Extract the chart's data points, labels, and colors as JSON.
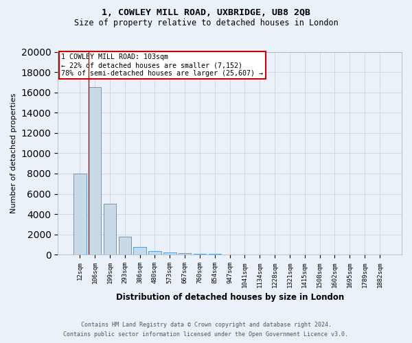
{
  "title1": "1, COWLEY MILL ROAD, UXBRIDGE, UB8 2QB",
  "title2": "Size of property relative to detached houses in London",
  "xlabel": "Distribution of detached houses by size in London",
  "ylabel": "Number of detached properties",
  "footnote1": "Contains HM Land Registry data © Crown copyright and database right 2024.",
  "footnote2": "Contains public sector information licensed under the Open Government Licence v3.0.",
  "bar_labels": [
    "12sqm",
    "106sqm",
    "199sqm",
    "293sqm",
    "386sqm",
    "480sqm",
    "573sqm",
    "667sqm",
    "760sqm",
    "854sqm",
    "947sqm",
    "1041sqm",
    "1134sqm",
    "1228sqm",
    "1321sqm",
    "1415sqm",
    "1508sqm",
    "1602sqm",
    "1695sqm",
    "1789sqm",
    "1882sqm"
  ],
  "bar_values": [
    8000,
    16500,
    5000,
    1750,
    750,
    350,
    200,
    150,
    120,
    100,
    0,
    0,
    0,
    0,
    0,
    0,
    0,
    0,
    0,
    0,
    0
  ],
  "bar_color": "#c8d9e8",
  "bar_edge_color": "#5b9bd5",
  "grid_color": "#d0d8e0",
  "background_color": "#eaf1f8",
  "annotation_text": "1 COWLEY MILL ROAD: 103sqm\n← 22% of detached houses are smaller (7,152)\n78% of semi-detached houses are larger (25,607) →",
  "annotation_box_color": "#ffffff",
  "annotation_box_edge": "#cc0000",
  "red_line_x": 0.575,
  "ylim": [
    0,
    20000
  ],
  "yticks": [
    0,
    2000,
    4000,
    6000,
    8000,
    10000,
    12000,
    14000,
    16000,
    18000,
    20000
  ]
}
